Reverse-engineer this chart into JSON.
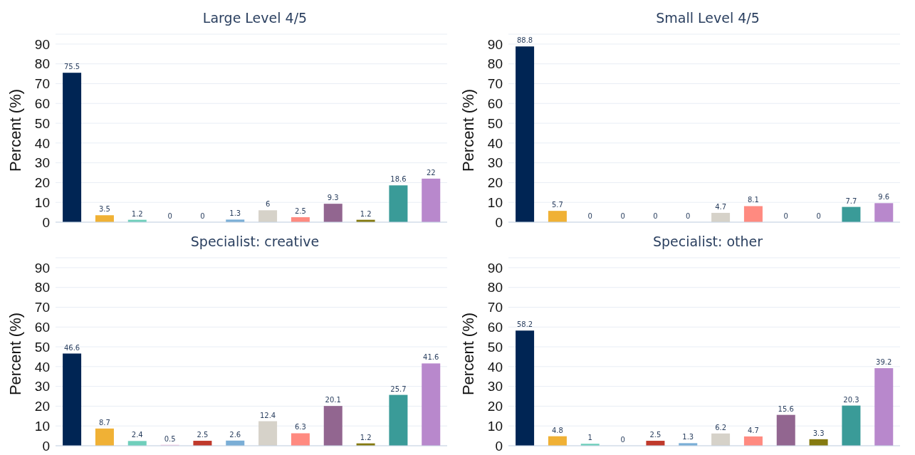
{
  "chart_data": [
    {
      "type": "bar",
      "title": "Large Level 4/5",
      "ylabel": "Percent (%)",
      "categories": [
        null,
        null,
        null,
        null,
        null,
        null,
        null,
        null,
        null,
        null,
        null,
        null
      ],
      "values": [
        75.5,
        3.5,
        1.2,
        0,
        0,
        1.3,
        6,
        2.5,
        9.3,
        1.2,
        18.6,
        22
      ],
      "colors": [
        "#002554",
        "#f0b135",
        "#6fcfbb",
        "#f2c4e0",
        "#c0392b",
        "#7aaed6",
        "#d6d2c9",
        "#ff8a80",
        "#926690",
        "#857a10",
        "#3a9b98",
        "#b888cc"
      ],
      "ylim": [
        0,
        95
      ],
      "yticks": [
        0,
        10,
        20,
        30,
        40,
        50,
        60,
        70,
        80,
        90
      ],
      "grid": "y",
      "data_labels": true
    },
    {
      "type": "bar",
      "title": "Small Level 4/5",
      "ylabel": "Percent (%)",
      "categories": [
        null,
        null,
        null,
        null,
        null,
        null,
        null,
        null,
        null,
        null,
        null,
        null
      ],
      "values": [
        88.8,
        5.7,
        0,
        0,
        0,
        0,
        4.7,
        8.1,
        0,
        0,
        7.7,
        9.6
      ],
      "colors": [
        "#002554",
        "#f0b135",
        "#6fcfbb",
        "#f2c4e0",
        "#c0392b",
        "#7aaed6",
        "#d6d2c9",
        "#ff8a80",
        "#926690",
        "#857a10",
        "#3a9b98",
        "#b888cc"
      ],
      "ylim": [
        0,
        95
      ],
      "yticks": [
        0,
        10,
        20,
        30,
        40,
        50,
        60,
        70,
        80,
        90
      ],
      "grid": "y",
      "data_labels": true
    },
    {
      "type": "bar",
      "title": "Specialist: creative",
      "ylabel": "Percent (%)",
      "categories": [
        null,
        null,
        null,
        null,
        null,
        null,
        null,
        null,
        null,
        null,
        null,
        null
      ],
      "values": [
        46.6,
        8.7,
        2.4,
        0.5,
        2.5,
        2.6,
        12.4,
        6.3,
        20.1,
        1.2,
        25.7,
        41.6
      ],
      "colors": [
        "#002554",
        "#f0b135",
        "#6fcfbb",
        "#f2c4e0",
        "#c0392b",
        "#7aaed6",
        "#d6d2c9",
        "#ff8a80",
        "#926690",
        "#857a10",
        "#3a9b98",
        "#b888cc"
      ],
      "ylim": [
        0,
        95
      ],
      "yticks": [
        0,
        10,
        20,
        30,
        40,
        50,
        60,
        70,
        80,
        90
      ],
      "grid": "y",
      "data_labels": true
    },
    {
      "type": "bar",
      "title": "Specialist: other",
      "ylabel": "Percent (%)",
      "categories": [
        null,
        null,
        null,
        null,
        null,
        null,
        null,
        null,
        null,
        null,
        null,
        null
      ],
      "values": [
        58.2,
        4.8,
        1,
        0,
        2.5,
        1.3,
        6.2,
        4.7,
        15.6,
        3.3,
        20.3,
        39.2
      ],
      "colors": [
        "#002554",
        "#f0b135",
        "#6fcfbb",
        "#f2c4e0",
        "#c0392b",
        "#7aaed6",
        "#d6d2c9",
        "#ff8a80",
        "#926690",
        "#857a10",
        "#3a9b98",
        "#b888cc"
      ],
      "ylim": [
        0,
        95
      ],
      "yticks": [
        0,
        10,
        20,
        30,
        40,
        50,
        60,
        70,
        80,
        90
      ],
      "grid": "y",
      "data_labels": true
    }
  ]
}
